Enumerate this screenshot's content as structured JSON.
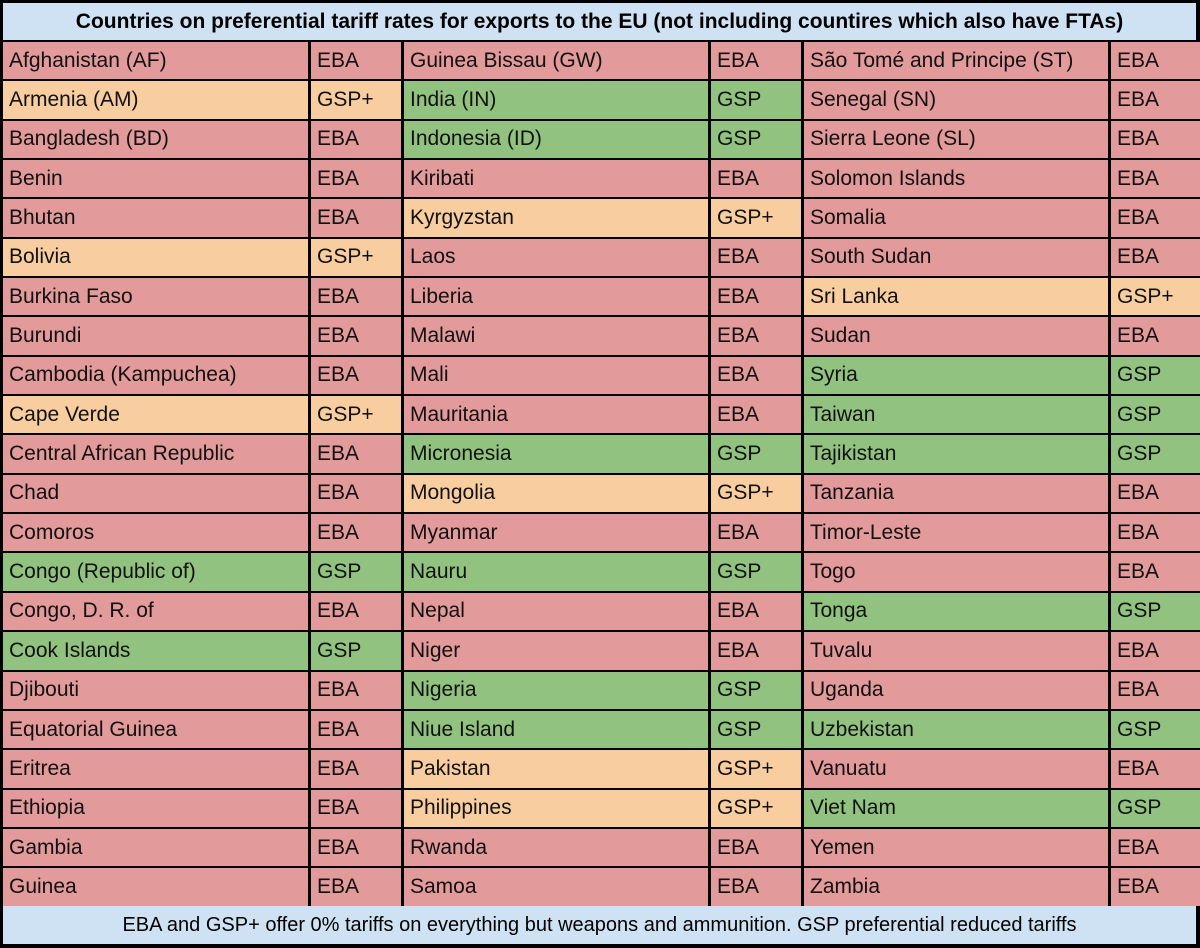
{
  "title": "Countries on preferential tariff rates for exports to the EU (not including countires which also have FTAs)",
  "footer": "EBA and GSP+ offer 0% tariffs on everything but weapons and ammunition. GSP preferential reduced tariffs",
  "colors": {
    "EBA": "#e39a9a",
    "GSP": "#92c280",
    "GSP+": "#f8cea1",
    "header_bg": "#cfe2f3"
  },
  "rows": [
    [
      [
        "Afghanistan (AF)",
        "EBA"
      ],
      [
        "Guinea Bissau (GW)",
        "EBA"
      ],
      [
        "São Tomé and Principe (ST)",
        "EBA"
      ]
    ],
    [
      [
        "Armenia (AM)",
        "GSP+"
      ],
      [
        "India (IN)",
        "GSP"
      ],
      [
        "Senegal (SN)",
        "EBA"
      ]
    ],
    [
      [
        "Bangladesh (BD)",
        "EBA"
      ],
      [
        "Indonesia (ID)",
        "GSP"
      ],
      [
        "Sierra Leone (SL)",
        "EBA"
      ]
    ],
    [
      [
        "Benin",
        "EBA"
      ],
      [
        "Kiribati",
        "EBA"
      ],
      [
        "Solomon Islands",
        "EBA"
      ]
    ],
    [
      [
        "Bhutan",
        "EBA"
      ],
      [
        "Kyrgyzstan",
        "GSP+"
      ],
      [
        "Somalia",
        "EBA"
      ]
    ],
    [
      [
        "Bolivia",
        "GSP+"
      ],
      [
        "Laos",
        "EBA"
      ],
      [
        "South Sudan",
        "EBA"
      ]
    ],
    [
      [
        "Burkina Faso",
        "EBA"
      ],
      [
        "Liberia",
        "EBA"
      ],
      [
        "Sri Lanka",
        "GSP+"
      ]
    ],
    [
      [
        "Burundi",
        "EBA"
      ],
      [
        "Malawi",
        "EBA"
      ],
      [
        "Sudan",
        "EBA"
      ]
    ],
    [
      [
        "Cambodia (Kampuchea)",
        "EBA"
      ],
      [
        "Mali",
        "EBA"
      ],
      [
        "Syria",
        "GSP"
      ]
    ],
    [
      [
        "Cape Verde",
        "GSP+"
      ],
      [
        "Mauritania",
        "EBA"
      ],
      [
        "Taiwan",
        "GSP"
      ]
    ],
    [
      [
        "Central African Republic",
        "EBA"
      ],
      [
        "Micronesia",
        "GSP"
      ],
      [
        "Tajikistan",
        "GSP"
      ]
    ],
    [
      [
        "Chad",
        "EBA"
      ],
      [
        "Mongolia",
        "GSP+"
      ],
      [
        "Tanzania",
        "EBA"
      ]
    ],
    [
      [
        "Comoros",
        "EBA"
      ],
      [
        "Myanmar",
        "EBA"
      ],
      [
        "Timor-Leste",
        "EBA"
      ]
    ],
    [
      [
        "Congo (Republic of)",
        "GSP"
      ],
      [
        "Nauru",
        "GSP"
      ],
      [
        "Togo",
        "EBA"
      ]
    ],
    [
      [
        "Congo, D. R. of",
        "EBA"
      ],
      [
        "Nepal",
        "EBA"
      ],
      [
        "Tonga",
        "GSP"
      ]
    ],
    [
      [
        "Cook Islands",
        "GSP"
      ],
      [
        "Niger",
        "EBA"
      ],
      [
        "Tuvalu",
        "EBA"
      ]
    ],
    [
      [
        "Djibouti",
        "EBA"
      ],
      [
        "Nigeria",
        "GSP"
      ],
      [
        "Uganda",
        "EBA"
      ]
    ],
    [
      [
        "Equatorial Guinea",
        "EBA"
      ],
      [
        "Niue Island",
        "GSP"
      ],
      [
        "Uzbekistan",
        "GSP"
      ]
    ],
    [
      [
        "Eritrea",
        "EBA"
      ],
      [
        "Pakistan",
        "GSP+"
      ],
      [
        "Vanuatu",
        "EBA"
      ]
    ],
    [
      [
        "Ethiopia",
        "EBA"
      ],
      [
        "Philippines",
        "GSP+"
      ],
      [
        "Viet Nam",
        "GSP"
      ]
    ],
    [
      [
        "Gambia",
        "EBA"
      ],
      [
        "Rwanda",
        "EBA"
      ],
      [
        "Yemen",
        "EBA"
      ]
    ],
    [
      [
        "Guinea",
        "EBA"
      ],
      [
        "Samoa",
        "EBA"
      ],
      [
        "Zambia",
        "EBA"
      ]
    ]
  ]
}
